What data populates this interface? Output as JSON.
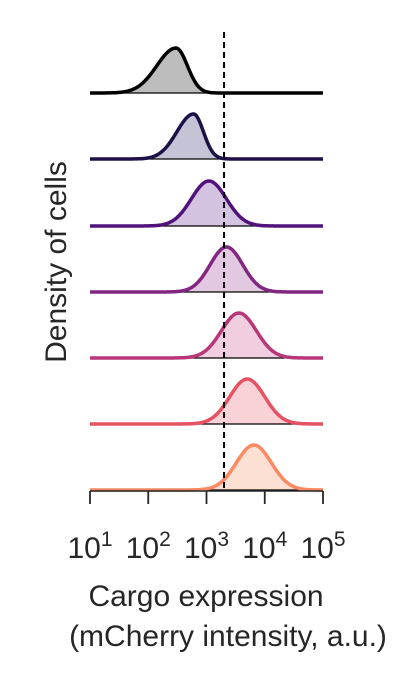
{
  "chart_data": {
    "type": "area",
    "xlabel_line1": "Cargo expression",
    "xlabel_line2": "(mCherry intensity, a.u.)",
    "ylabel": "Density of cells",
    "x_scale": "log10",
    "xlim": [
      10,
      100000
    ],
    "x_ticks": [
      10,
      100,
      1000,
      10000,
      100000
    ],
    "x_tick_labels": [
      {
        "base": "10",
        "exp": "1"
      },
      {
        "base": "10",
        "exp": "2"
      },
      {
        "base": "10",
        "exp": "3"
      },
      {
        "base": "10",
        "exp": "4"
      },
      {
        "base": "10",
        "exp": "5"
      }
    ],
    "threshold_x": 2000,
    "threshold_style": "dashed",
    "grid": false,
    "legend": "none",
    "series": [
      {
        "color": "#000000",
        "fill": "#bdbdbd",
        "peak_x": 300,
        "sigma_decades": 0.3,
        "skew": "right-steep"
      },
      {
        "color": "#1d1147",
        "fill": "#c5c4d6",
        "peak_x": 600,
        "sigma_decades": 0.26,
        "skew": "right-steep"
      },
      {
        "color": "#51127c",
        "fill": "#d3c3e0",
        "peak_x": 1100,
        "sigma_decades": 0.3,
        "skew": "balanced"
      },
      {
        "color": "#822681",
        "fill": "#e3c8e2",
        "peak_x": 2200,
        "sigma_decades": 0.28,
        "skew": "balanced"
      },
      {
        "color": "#b73779",
        "fill": "#f1cde0",
        "peak_x": 3600,
        "sigma_decades": 0.3,
        "skew": "balanced"
      },
      {
        "color": "#e75263",
        "fill": "#f9d2d8",
        "peak_x": 5000,
        "sigma_decades": 0.3,
        "skew": "balanced"
      },
      {
        "color": "#fc8961",
        "fill": "#fde0d4",
        "peak_x": 6500,
        "sigma_decades": 0.3,
        "skew": "balanced"
      }
    ]
  }
}
